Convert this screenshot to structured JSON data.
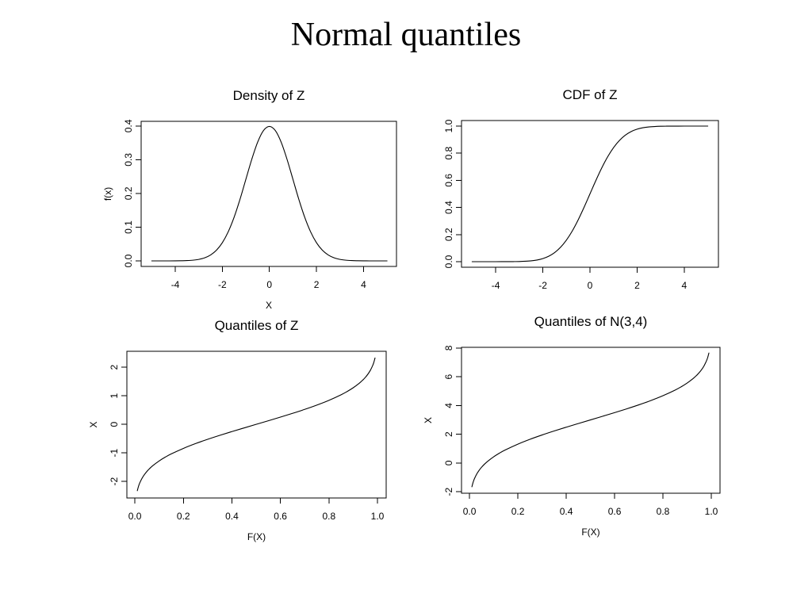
{
  "slide": {
    "title": "Normal quantiles"
  },
  "colors": {
    "background": "#ffffff",
    "ink": "#000000"
  },
  "chart_data": [
    {
      "type": "line",
      "title": "Density of Z",
      "xlabel": "X",
      "ylabel": "f(x)",
      "xlim": [
        -5.45,
        5.4
      ],
      "ylim": [
        -0.0165,
        0.414
      ],
      "xticks": [
        "-4",
        "-2",
        "0",
        "2",
        "4"
      ],
      "yticks": [
        "0.0",
        "0.1",
        "0.2",
        "0.3",
        "0.4"
      ],
      "grid": false,
      "x": [
        -5,
        -4.75,
        -4.5,
        -4.25,
        -4,
        -3.75,
        -3.5,
        -3.25,
        -3,
        -2.75,
        -2.5,
        -2.25,
        -2,
        -1.75,
        -1.5,
        -1.25,
        -1,
        -0.75,
        -0.5,
        -0.25,
        0,
        0.25,
        0.5,
        0.75,
        1,
        1.25,
        1.5,
        1.75,
        2,
        2.25,
        2.5,
        2.75,
        3,
        3.25,
        3.5,
        3.75,
        4,
        4.25,
        4.5,
        4.75,
        5
      ],
      "y": [
        0,
        0,
        0,
        0,
        0.0001,
        0.0004,
        0.0009,
        0.002,
        0.0044,
        0.0091,
        0.0175,
        0.0317,
        0.054,
        0.0863,
        0.1295,
        0.1826,
        0.242,
        0.3011,
        0.3521,
        0.3867,
        0.3989,
        0.3867,
        0.3521,
        0.3011,
        0.242,
        0.1826,
        0.1295,
        0.0863,
        0.054,
        0.0317,
        0.0175,
        0.0091,
        0.0044,
        0.002,
        0.0009,
        0.0004,
        0.0001,
        0,
        0,
        0,
        0
      ]
    },
    {
      "type": "line",
      "title": "CDF of Z",
      "xlabel": "",
      "ylabel": "",
      "xlim": [
        -5.45,
        5.45
      ],
      "ylim": [
        -0.041,
        1.041
      ],
      "xticks": [
        "-4",
        "-2",
        "0",
        "2",
        "4"
      ],
      "yticks": [
        "0.0",
        "0.2",
        "0.4",
        "0.6",
        "0.8",
        "1.0"
      ],
      "grid": false,
      "x": [
        -5,
        -4.75,
        -4.5,
        -4.25,
        -4,
        -3.75,
        -3.5,
        -3.25,
        -3,
        -2.75,
        -2.5,
        -2.25,
        -2,
        -1.75,
        -1.5,
        -1.25,
        -1,
        -0.75,
        -0.5,
        -0.25,
        0,
        0.25,
        0.5,
        0.75,
        1,
        1.25,
        1.5,
        1.75,
        2,
        2.25,
        2.5,
        2.75,
        3,
        3.25,
        3.5,
        3.75,
        4,
        4.25,
        4.5,
        4.75,
        5
      ],
      "y": [
        0,
        0,
        0,
        0,
        0,
        0.0001,
        0.0002,
        0.0006,
        0.0013,
        0.003,
        0.0062,
        0.0122,
        0.0228,
        0.0401,
        0.0668,
        0.1056,
        0.1587,
        0.2266,
        0.3085,
        0.4013,
        0.5,
        0.5987,
        0.6915,
        0.7734,
        0.8413,
        0.8944,
        0.9332,
        0.9599,
        0.9772,
        0.9878,
        0.9938,
        0.997,
        0.9987,
        0.9994,
        0.9998,
        0.9999,
        1,
        1,
        1,
        1,
        1
      ]
    },
    {
      "type": "line",
      "title": "Quantiles of Z",
      "xlabel": "F(X)",
      "ylabel": "X",
      "xlim": [
        -0.033,
        1.036
      ],
      "ylim": [
        -2.58,
        2.56
      ],
      "xticks": [
        "0.0",
        "0.2",
        "0.4",
        "0.6",
        "0.8",
        "1.0"
      ],
      "yticks": [
        "-2",
        "-1",
        "0",
        "1",
        "2"
      ],
      "grid": false,
      "x": [
        0.01,
        0.015,
        0.02,
        0.03,
        0.04,
        0.05,
        0.06,
        0.075,
        0.1,
        0.125,
        0.15,
        0.2,
        0.25,
        0.3,
        0.35,
        0.4,
        0.45,
        0.5,
        0.55,
        0.6,
        0.65,
        0.7,
        0.75,
        0.8,
        0.85,
        0.875,
        0.9,
        0.925,
        0.94,
        0.95,
        0.96,
        0.97,
        0.98,
        0.985,
        0.99
      ],
      "y": [
        -2.326,
        -2.17,
        -2.054,
        -1.881,
        -1.751,
        -1.645,
        -1.555,
        -1.44,
        -1.282,
        -1.15,
        -1.036,
        -0.842,
        -0.674,
        -0.524,
        -0.385,
        -0.253,
        -0.126,
        0,
        0.126,
        0.253,
        0.385,
        0.524,
        0.674,
        0.842,
        1.036,
        1.15,
        1.282,
        1.44,
        1.555,
        1.645,
        1.751,
        1.881,
        2.054,
        2.17,
        2.326
      ]
    },
    {
      "type": "line",
      "title": "Quantiles of N(3,4)",
      "xlabel": "F(X)",
      "ylabel": "X",
      "xlim": [
        -0.033,
        1.036
      ],
      "ylim": [
        -2.1,
        8.05
      ],
      "xticks": [
        "0.0",
        "0.2",
        "0.4",
        "0.6",
        "0.8",
        "1.0"
      ],
      "yticks": [
        "-2",
        "0",
        "2",
        "4",
        "6",
        "8"
      ],
      "grid": false,
      "x": [
        0.01,
        0.015,
        0.02,
        0.03,
        0.04,
        0.05,
        0.06,
        0.075,
        0.1,
        0.125,
        0.15,
        0.2,
        0.25,
        0.3,
        0.35,
        0.4,
        0.45,
        0.5,
        0.55,
        0.6,
        0.65,
        0.7,
        0.75,
        0.8,
        0.85,
        0.875,
        0.9,
        0.925,
        0.94,
        0.95,
        0.96,
        0.97,
        0.98,
        0.985,
        0.99
      ],
      "y": [
        -1.652,
        -1.34,
        -1.108,
        -0.762,
        -0.502,
        -0.29,
        -0.11,
        0.12,
        0.436,
        0.7,
        0.928,
        1.316,
        1.652,
        1.952,
        2.23,
        2.494,
        2.748,
        3,
        3.252,
        3.506,
        3.77,
        4.048,
        4.348,
        4.684,
        5.072,
        5.3,
        5.564,
        5.88,
        6.11,
        6.29,
        6.502,
        6.762,
        7.108,
        7.34,
        7.652
      ]
    }
  ]
}
